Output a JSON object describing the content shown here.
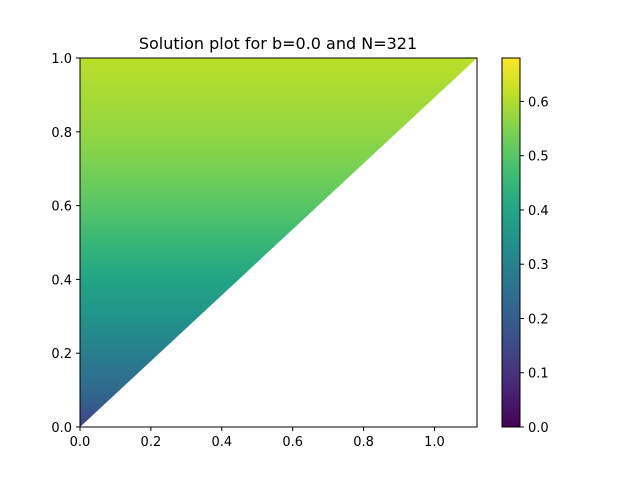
{
  "chart_data": {
    "type": "heatmap",
    "title": "Solution plot for b=0.0 and N=321",
    "xlabel": "",
    "ylabel": "",
    "xlim": [
      0.0,
      1.12
    ],
    "ylim": [
      0.0,
      1.0
    ],
    "x_ticks": [
      "0.0",
      "0.2",
      "0.4",
      "0.6",
      "0.8",
      "1.0"
    ],
    "y_ticks": [
      "0.0",
      "0.2",
      "0.4",
      "0.6",
      "0.8",
      "1.0"
    ],
    "domain": "triangle with vertices (0,0), (0,1), (1.12,1); filled region above the line y = x/1.12",
    "field_profile": {
      "y": [
        0.0,
        0.05,
        0.1,
        0.15,
        0.2,
        0.3,
        0.4,
        0.5,
        0.6,
        0.7,
        0.8,
        0.9,
        1.0
      ],
      "value": [
        0.13,
        0.19,
        0.23,
        0.26,
        0.29,
        0.35,
        0.4,
        0.45,
        0.5,
        0.54,
        0.57,
        0.59,
        0.61
      ]
    },
    "colormap": "viridis",
    "colorbar": {
      "min": 0.0,
      "max": 0.68,
      "ticks": [
        "0.0",
        "0.1",
        "0.2",
        "0.3",
        "0.4",
        "0.5",
        "0.6"
      ]
    },
    "grid": false,
    "legend": "none"
  }
}
